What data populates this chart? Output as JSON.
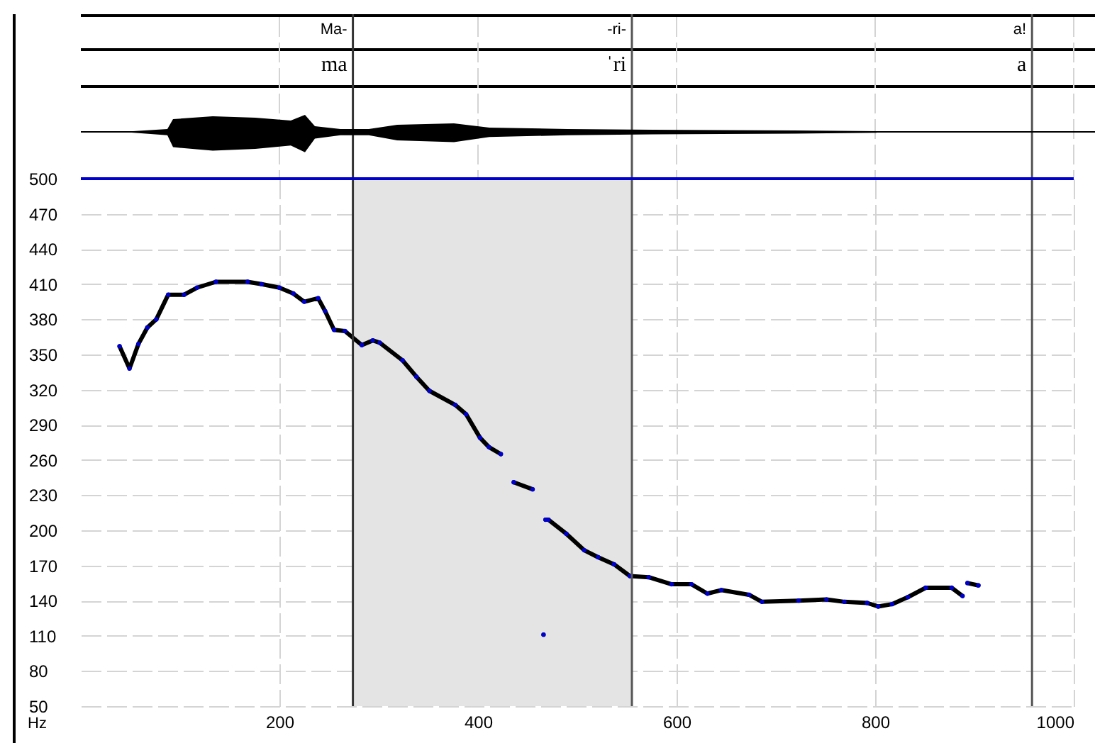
{
  "chart_data": {
    "type": "line",
    "ylabel": "Hz",
    "x": [
      39,
      49,
      58,
      67,
      76,
      88,
      104,
      117,
      136,
      168,
      182,
      200,
      214,
      225,
      239,
      246,
      255,
      266,
      283,
      294,
      301,
      324,
      338,
      351,
      377,
      388,
      402,
      411,
      423,
      430,
      436,
      455,
      460,
      466,
      467,
      468,
      471,
      489,
      507,
      521,
      537,
      553,
      572,
      595,
      615,
      631,
      645,
      673,
      686,
      723,
      751,
      769,
      792,
      803,
      817,
      833,
      851,
      877,
      888,
      890,
      893,
      904
    ],
    "series": [
      {
        "color": "#0000cc",
        "values": [
          357,
          338,
          359,
          373,
          380,
          401,
          401,
          407,
          412,
          412,
          410,
          407,
          402,
          395,
          398,
          387,
          371,
          370,
          358,
          362,
          360,
          345,
          331,
          319,
          307,
          299,
          279,
          271,
          265,
          null,
          241,
          235,
          null,
          111,
          null,
          209,
          209,
          197,
          183,
          177,
          171,
          161,
          160,
          154,
          154,
          146,
          149,
          145,
          139,
          140,
          141,
          139,
          138,
          135,
          137,
          143,
          151,
          151,
          144,
          null,
          155,
          153
        ]
      }
    ],
    "xlim": [
      0,
      1000
    ],
    "xticks": [
      200,
      400,
      600,
      800,
      1000
    ],
    "ylim": [
      50,
      500
    ],
    "yticks": [
      50,
      80,
      110,
      140,
      170,
      200,
      230,
      260,
      290,
      320,
      350,
      380,
      410,
      440,
      470,
      500
    ],
    "grid": true,
    "marker": "circle",
    "ref_lines": [
      {
        "axis": "x",
        "value": 274,
        "color": "#333333"
      },
      {
        "axis": "x",
        "value": 555,
        "color": "#555555"
      },
      {
        "axis": "x",
        "value": 958,
        "color": "#555555"
      },
      {
        "axis": "y",
        "value": 500,
        "color": "#0000cc"
      }
    ],
    "bands": [
      {
        "axis": "x",
        "from": 274,
        "to": 555,
        "color": "#e4e4e4"
      }
    ],
    "annotations": [
      "Ma-",
      "-ri-",
      "a!",
      "ma",
      "ˈri",
      "a"
    ]
  }
}
